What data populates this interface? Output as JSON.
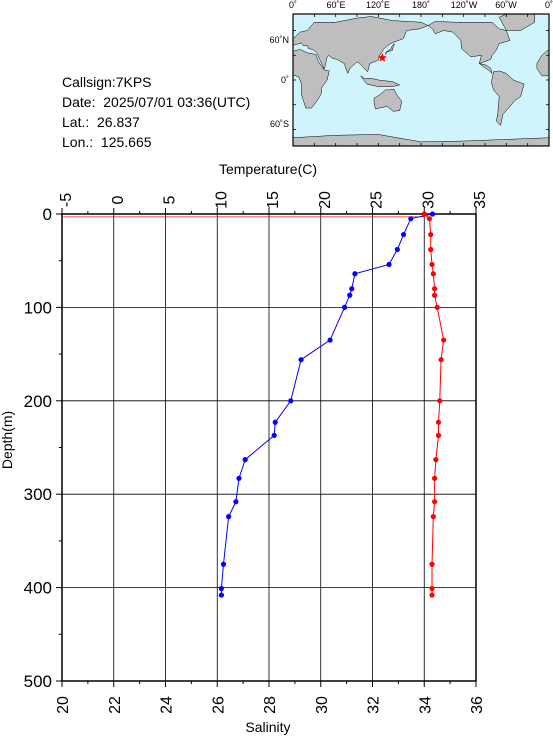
{
  "station": {
    "callsign_label": "Callsign:7KPS",
    "date_label": "Date:  2025/07/01 03:36(UTC)",
    "lat_label": "Lat.:  26.837",
    "lon_label": "Lon.:  125.665"
  },
  "map": {
    "top_labels": [
      "0˚",
      "60˚E",
      "120˚E",
      "180˚",
      "120˚W",
      "60˚W",
      "0˚"
    ],
    "left_labels": [
      "60˚N",
      "0˚",
      "60˚S"
    ],
    "ocean_color": "#cff4fb",
    "land_color": "#bebebe",
    "marker_color": "#ff0000",
    "marker_lat": 26.837,
    "marker_lon": 125.665
  },
  "chart_data": {
    "type": "line",
    "ylabel": "Depth(m)",
    "yticks": [
      "0",
      "100",
      "200",
      "300",
      "400",
      "500"
    ],
    "ylim": [
      0,
      500
    ],
    "y_inverted": true,
    "grid": true,
    "temperature_axis": {
      "label": "Temperature(C)",
      "ticks": [
        "-5",
        "0",
        "5",
        "10",
        "15",
        "20",
        "25",
        "30",
        "35"
      ],
      "range": [
        -5,
        35
      ],
      "position": "top"
    },
    "salinity_axis": {
      "label": "Salinity",
      "ticks": [
        "20",
        "22",
        "24",
        "26",
        "28",
        "30",
        "32",
        "34",
        "36"
      ],
      "range": [
        20,
        36
      ],
      "position": "bottom"
    },
    "series": [
      {
        "axis": "temperature",
        "color": "#0000ff",
        "points": [
          {
            "t": 30.8,
            "d": 0
          },
          {
            "t": 28.7,
            "d": 5
          },
          {
            "t": 28.0,
            "d": 22
          },
          {
            "t": 27.4,
            "d": 38
          },
          {
            "t": 26.6,
            "d": 54
          },
          {
            "t": 23.3,
            "d": 64
          },
          {
            "t": 23.0,
            "d": 80
          },
          {
            "t": 22.8,
            "d": 87
          },
          {
            "t": 22.3,
            "d": 100
          },
          {
            "t": 20.9,
            "d": 135
          },
          {
            "t": 18.1,
            "d": 156
          },
          {
            "t": 17.1,
            "d": 200
          },
          {
            "t": 15.6,
            "d": 223
          },
          {
            "t": 15.5,
            "d": 237
          },
          {
            "t": 12.7,
            "d": 263
          },
          {
            "t": 12.1,
            "d": 283
          },
          {
            "t": 11.8,
            "d": 308
          },
          {
            "t": 11.1,
            "d": 324
          },
          {
            "t": 10.6,
            "d": 375
          },
          {
            "t": 10.4,
            "d": 401
          },
          {
            "t": 10.4,
            "d": 408
          }
        ]
      },
      {
        "axis": "salinity",
        "color": "#ff0000",
        "points": [
          {
            "s": 34.0,
            "d": 0
          },
          {
            "s": 34.2,
            "d": 5
          },
          {
            "s": 34.25,
            "d": 22
          },
          {
            "s": 34.25,
            "d": 38
          },
          {
            "s": 34.3,
            "d": 54
          },
          {
            "s": 34.35,
            "d": 64
          },
          {
            "s": 34.4,
            "d": 80
          },
          {
            "s": 34.4,
            "d": 87
          },
          {
            "s": 34.5,
            "d": 100
          },
          {
            "s": 34.75,
            "d": 135
          },
          {
            "s": 34.65,
            "d": 156
          },
          {
            "s": 34.6,
            "d": 200
          },
          {
            "s": 34.55,
            "d": 223
          },
          {
            "s": 34.55,
            "d": 237
          },
          {
            "s": 34.45,
            "d": 263
          },
          {
            "s": 34.4,
            "d": 283
          },
          {
            "s": 34.4,
            "d": 308
          },
          {
            "s": 34.35,
            "d": 324
          },
          {
            "s": 34.3,
            "d": 375
          },
          {
            "s": 34.3,
            "d": 401
          },
          {
            "s": 34.3,
            "d": 408
          }
        ]
      }
    ]
  }
}
